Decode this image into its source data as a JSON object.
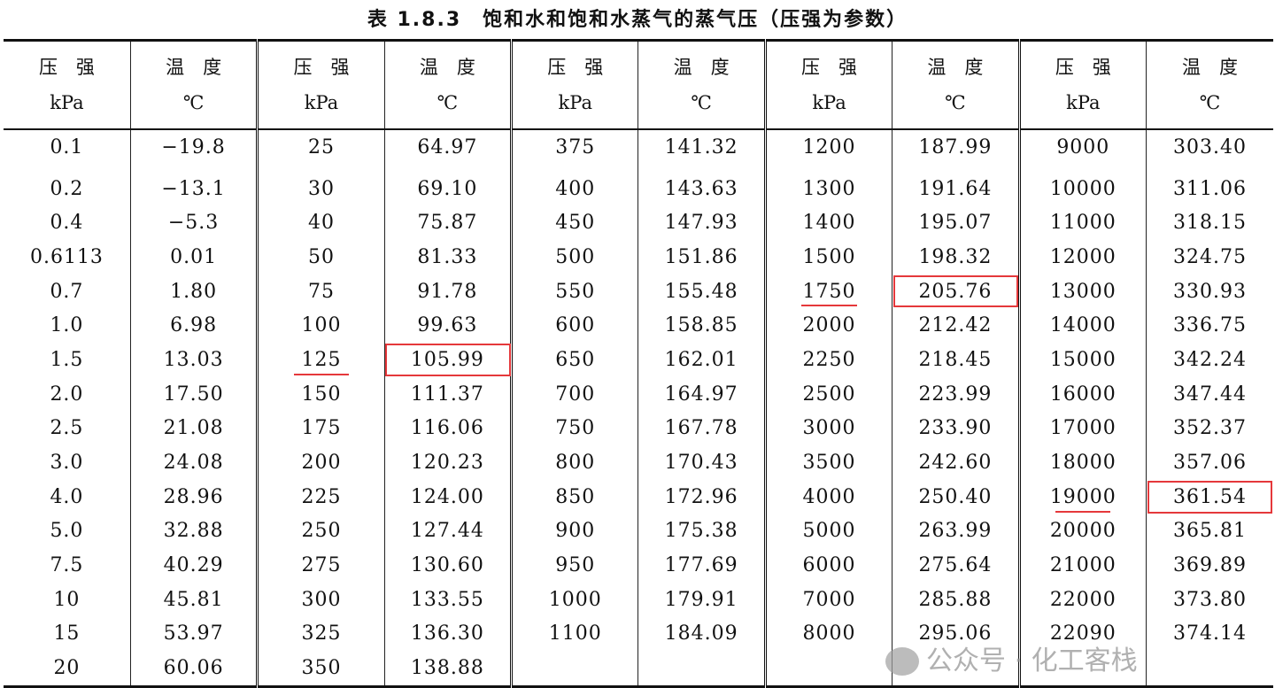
{
  "title": "表 1.8.3　饱和水和饱和水蒸气的蒸气压（压强为参数）",
  "headers": {
    "pressure": "压　强",
    "pressure_unit": "kPa",
    "temperature": "温　度",
    "temperature_unit": "℃"
  },
  "groups": [
    {
      "rows": [
        [
          "0.1",
          "−19.8"
        ],
        [
          "0.2",
          "−13.1"
        ],
        [
          "0.4",
          "−5.3"
        ],
        [
          "0.6113",
          "0.01"
        ],
        [
          "0.7",
          "1.80"
        ],
        [
          "1.0",
          "6.98"
        ],
        [
          "1.5",
          "13.03"
        ],
        [
          "2.0",
          "17.50"
        ],
        [
          "2.5",
          "21.08"
        ],
        [
          "3.0",
          "24.08"
        ],
        [
          "4.0",
          "28.96"
        ],
        [
          "5.0",
          "32.88"
        ],
        [
          "7.5",
          "40.29"
        ],
        [
          "10",
          "45.81"
        ],
        [
          "15",
          "53.97"
        ],
        [
          "20",
          "60.06"
        ]
      ]
    },
    {
      "rows": [
        [
          "25",
          "64.97"
        ],
        [
          "30",
          "69.10"
        ],
        [
          "40",
          "75.87"
        ],
        [
          "50",
          "81.33"
        ],
        [
          "75",
          "91.78"
        ],
        [
          "100",
          "99.63"
        ],
        [
          "125",
          "105.99"
        ],
        [
          "150",
          "111.37"
        ],
        [
          "175",
          "116.06"
        ],
        [
          "200",
          "120.23"
        ],
        [
          "225",
          "124.00"
        ],
        [
          "250",
          "127.44"
        ],
        [
          "275",
          "130.60"
        ],
        [
          "300",
          "133.55"
        ],
        [
          "325",
          "136.30"
        ],
        [
          "350",
          "138.88"
        ]
      ]
    },
    {
      "rows": [
        [
          "375",
          "141.32"
        ],
        [
          "400",
          "143.63"
        ],
        [
          "450",
          "147.93"
        ],
        [
          "500",
          "151.86"
        ],
        [
          "550",
          "155.48"
        ],
        [
          "600",
          "158.85"
        ],
        [
          "650",
          "162.01"
        ],
        [
          "700",
          "164.97"
        ],
        [
          "750",
          "167.78"
        ],
        [
          "800",
          "170.43"
        ],
        [
          "850",
          "172.96"
        ],
        [
          "900",
          "175.38"
        ],
        [
          "950",
          "177.69"
        ],
        [
          "1000",
          "179.91"
        ],
        [
          "1100",
          "184.09"
        ],
        [
          "",
          ""
        ]
      ]
    },
    {
      "rows": [
        [
          "1200",
          "187.99"
        ],
        [
          "1300",
          "191.64"
        ],
        [
          "1400",
          "195.07"
        ],
        [
          "1500",
          "198.32"
        ],
        [
          "1750",
          "205.76"
        ],
        [
          "2000",
          "212.42"
        ],
        [
          "2250",
          "218.45"
        ],
        [
          "2500",
          "223.99"
        ],
        [
          "3000",
          "233.90"
        ],
        [
          "3500",
          "242.60"
        ],
        [
          "4000",
          "250.40"
        ],
        [
          "5000",
          "263.99"
        ],
        [
          "6000",
          "275.64"
        ],
        [
          "7000",
          "285.88"
        ],
        [
          "8000",
          "295.06"
        ],
        [
          "",
          ""
        ]
      ]
    },
    {
      "rows": [
        [
          "9000",
          "303.40"
        ],
        [
          "10000",
          "311.06"
        ],
        [
          "11000",
          "318.15"
        ],
        [
          "12000",
          "324.75"
        ],
        [
          "13000",
          "330.93"
        ],
        [
          "14000",
          "336.75"
        ],
        [
          "15000",
          "342.24"
        ],
        [
          "16000",
          "347.44"
        ],
        [
          "17000",
          "352.37"
        ],
        [
          "18000",
          "357.06"
        ],
        [
          "19000",
          "361.54"
        ],
        [
          "20000",
          "365.81"
        ],
        [
          "21000",
          "369.89"
        ],
        [
          "22000",
          "373.80"
        ],
        [
          "22090",
          "374.14"
        ],
        [
          "",
          ""
        ]
      ]
    }
  ],
  "highlights": [
    {
      "group": 1,
      "row": 6
    },
    {
      "group": 3,
      "row": 4
    },
    {
      "group": 4,
      "row": 10
    }
  ],
  "highlight_color": "#e5383b",
  "watermark": "公众号 · 化工客栈"
}
